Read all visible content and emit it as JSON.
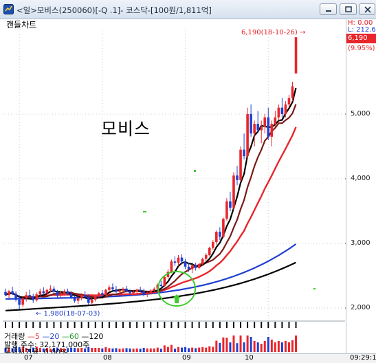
{
  "window": {
    "title": "<일>모비스(250060)[-Q .1]- 코스닥-[100원/1,811억]"
  },
  "chart_type_label": "캔들차트",
  "stock_name": "모비스",
  "right_panel": {
    "high": "H: 0.00",
    "low": "L: 212.6",
    "current_price": "6,190",
    "change_pct": "(9.95%)"
  },
  "annotations": {
    "max": "6,190(18-10-26) →",
    "min": "← 1,980(18-07-03)"
  },
  "volume_panel": {
    "legend_prefix": "거래량",
    "ma_5": "5",
    "ma_20": "20",
    "ma_60": "60",
    "ma_120": "120",
    "shares_line": "발행 주수: 32,171,000주",
    "last_line": "동원시기율: 0.00%"
  },
  "clock": "09:29:1",
  "colors": {
    "up": "#e8262b",
    "down": "#1f3fd0",
    "ma5": "#e8262b",
    "ma20": "#1f3fd0",
    "ma60": "#1f8f2a",
    "ma120": "#000000",
    "highlight": "#3ecb2c"
  },
  "chart_data": {
    "type": "candlestick",
    "title": "",
    "y_ticks": [
      "5,000",
      "4,000",
      "3,000",
      "2,000"
    ],
    "y_tick_values": [
      5000,
      4000,
      3000,
      2000
    ],
    "ylim": [
      1800,
      6300
    ],
    "x_ticks": [
      "07",
      "08",
      "09",
      "10"
    ],
    "x_tick_index": [
      4,
      28,
      52,
      76
    ],
    "candles": [
      [
        2250,
        2300,
        2180,
        2200
      ],
      [
        2200,
        2280,
        2150,
        2260
      ],
      [
        2260,
        2330,
        2200,
        2220
      ],
      [
        2220,
        2260,
        2100,
        2130
      ],
      [
        2130,
        2200,
        1980,
        2050
      ],
      [
        2050,
        2180,
        2020,
        2150
      ],
      [
        2150,
        2250,
        2100,
        2200
      ],
      [
        2200,
        2280,
        2150,
        2180
      ],
      [
        2180,
        2220,
        2080,
        2120
      ],
      [
        2120,
        2240,
        2100,
        2210
      ],
      [
        2210,
        2300,
        2180,
        2260
      ],
      [
        2260,
        2320,
        2200,
        2230
      ],
      [
        2230,
        2300,
        2190,
        2280
      ],
      [
        2280,
        2350,
        2240,
        2300
      ],
      [
        2300,
        2340,
        2220,
        2250
      ],
      [
        2250,
        2280,
        2160,
        2190
      ],
      [
        2190,
        2260,
        2150,
        2230
      ],
      [
        2230,
        2290,
        2190,
        2260
      ],
      [
        2260,
        2300,
        2200,
        2220
      ],
      [
        2220,
        2260,
        2140,
        2160
      ],
      [
        2160,
        2200,
        2080,
        2110
      ],
      [
        2110,
        2180,
        2060,
        2150
      ],
      [
        2150,
        2230,
        2120,
        2200
      ],
      [
        2200,
        2260,
        2150,
        2170
      ],
      [
        2170,
        2210,
        2050,
        2080
      ],
      [
        2080,
        2160,
        2040,
        2130
      ],
      [
        2130,
        2200,
        2100,
        2180
      ],
      [
        2180,
        2250,
        2150,
        2230
      ],
      [
        2230,
        2280,
        2180,
        2200
      ],
      [
        2200,
        2300,
        2180,
        2280
      ],
      [
        2280,
        2350,
        2250,
        2320
      ],
      [
        2320,
        2380,
        2260,
        2290
      ],
      [
        2290,
        2340,
        2230,
        2250
      ],
      [
        2250,
        2300,
        2200,
        2270
      ],
      [
        2270,
        2320,
        2230,
        2300
      ],
      [
        2300,
        2340,
        2240,
        2260
      ],
      [
        2260,
        2290,
        2200,
        2230
      ],
      [
        2230,
        2280,
        2190,
        2250
      ],
      [
        2250,
        2300,
        2200,
        2280
      ],
      [
        2280,
        2330,
        2240,
        2260
      ],
      [
        2260,
        2300,
        2180,
        2210
      ],
      [
        2210,
        2260,
        2170,
        2240
      ],
      [
        2240,
        2290,
        2210,
        2270
      ],
      [
        2270,
        2320,
        2240,
        2300
      ],
      [
        2300,
        2380,
        2280,
        2360
      ],
      [
        2360,
        2420,
        2300,
        2340
      ],
      [
        2340,
        2500,
        2330,
        2480
      ],
      [
        2480,
        2600,
        2450,
        2560
      ],
      [
        2560,
        2750,
        2540,
        2720
      ],
      [
        2720,
        2800,
        2650,
        2700
      ],
      [
        2700,
        2820,
        2650,
        2780
      ],
      [
        2780,
        2830,
        2680,
        2720
      ],
      [
        2720,
        2760,
        2600,
        2640
      ],
      [
        2640,
        2700,
        2560,
        2600
      ],
      [
        2600,
        2680,
        2540,
        2660
      ],
      [
        2660,
        2700,
        2580,
        2620
      ],
      [
        2620,
        2700,
        2600,
        2680
      ],
      [
        2680,
        2780,
        2650,
        2760
      ],
      [
        2760,
        2850,
        2720,
        2820
      ],
      [
        2820,
        2950,
        2800,
        2930
      ],
      [
        2930,
        3050,
        2900,
        3020
      ],
      [
        3020,
        3200,
        2980,
        3180
      ],
      [
        3180,
        3250,
        3050,
        3100
      ],
      [
        3100,
        3400,
        3080,
        3380
      ],
      [
        3380,
        3700,
        3350,
        3650
      ],
      [
        3650,
        3800,
        3500,
        3550
      ],
      [
        3550,
        4100,
        3520,
        4050
      ],
      [
        4050,
        4200,
        3900,
        3980
      ],
      [
        3980,
        4500,
        3950,
        4450
      ],
      [
        4450,
        4700,
        4300,
        4350
      ],
      [
        4350,
        5100,
        4300,
        5000
      ],
      [
        5000,
        5150,
        4650,
        4700
      ],
      [
        4700,
        4900,
        4500,
        4850
      ],
      [
        4850,
        5050,
        4700,
        4750
      ],
      [
        4750,
        4900,
        4550,
        4800
      ],
      [
        4800,
        5000,
        4700,
        4950
      ],
      [
        4950,
        5100,
        4600,
        4650
      ],
      [
        4650,
        4900,
        4500,
        4850
      ],
      [
        4850,
        5050,
        4800,
        4950
      ],
      [
        4950,
        5150,
        4900,
        5100
      ],
      [
        5100,
        5250,
        4950,
        5000
      ],
      [
        5000,
        5200,
        4950,
        5150
      ],
      [
        5150,
        5300,
        5100,
        5250
      ],
      [
        5250,
        5500,
        5200,
        5430
      ],
      [
        5630,
        6190,
        5630,
        6190
      ]
    ],
    "price_min": 1980,
    "price_max": 6190,
    "volume_series": [
      "5",
      "20",
      "60",
      "120"
    ]
  }
}
